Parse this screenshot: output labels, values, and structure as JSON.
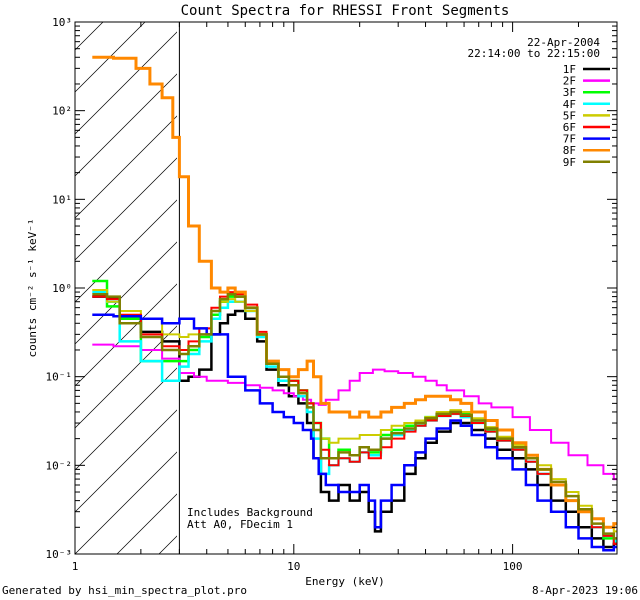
{
  "chart_data": {
    "type": "line",
    "title": "Count Spectra for RHESSI Front Segments",
    "xlabel": "Energy (keV)",
    "ylabel": "counts cm⁻² s⁻¹ keV⁻¹",
    "xscale": "log",
    "yscale": "log",
    "xlim": [
      1,
      300
    ],
    "ylim": [
      0.001,
      1000
    ],
    "x_ticks": [
      {
        "value": 1,
        "label": "1"
      },
      {
        "value": 10,
        "label": "10"
      },
      {
        "value": 100,
        "label": "100"
      }
    ],
    "y_ticks": [
      {
        "value": 0.001,
        "label": "10⁻³"
      },
      {
        "value": 0.01,
        "label": "10⁻²"
      },
      {
        "value": 0.1,
        "label": "10⁻¹"
      },
      {
        "value": 1,
        "label": "10⁰"
      },
      {
        "value": 10,
        "label": "10¹"
      },
      {
        "value": 100,
        "label": "10²"
      },
      {
        "value": 1000,
        "label": "10³"
      }
    ],
    "date": "22-Apr-2004",
    "time_range": "22:14:00 to 22:15:00",
    "hatched_region_max_keV": 3,
    "annotations": [
      "Includes Background",
      "Att A0, FDecim 1"
    ],
    "footer_left": "Generated by hsi_min_spectra_plot.pro",
    "footer_right": "8-Apr-2023 19:06",
    "series": [
      {
        "name": "1F",
        "color": "#000000",
        "width": 2.5,
        "x": [
          1.2,
          1.4,
          1.6,
          2.0,
          2.5,
          3.0,
          3.3,
          3.7,
          4.2,
          4.6,
          5.0,
          5.4,
          6.0,
          6.8,
          7.5,
          8.5,
          9.5,
          10.5,
          11.5,
          12.3,
          13.3,
          14.5,
          16,
          18,
          20,
          22,
          23.5,
          25,
          28,
          32,
          36,
          40,
          45,
          52,
          58,
          65,
          75,
          85,
          100,
          115,
          130,
          150,
          175,
          200,
          230,
          260,
          290
        ],
        "y": [
          0.8,
          0.78,
          0.45,
          0.32,
          0.25,
          0.09,
          0.1,
          0.12,
          0.3,
          0.4,
          0.5,
          0.55,
          0.45,
          0.25,
          0.12,
          0.08,
          0.06,
          0.05,
          0.03,
          0.012,
          0.005,
          0.004,
          0.006,
          0.004,
          0.005,
          0.003,
          0.0018,
          0.003,
          0.004,
          0.008,
          0.012,
          0.018,
          0.024,
          0.03,
          0.03,
          0.025,
          0.02,
          0.015,
          0.012,
          0.009,
          0.006,
          0.004,
          0.003,
          0.002,
          0.0015,
          0.0012,
          0.0013
        ]
      },
      {
        "name": "2F",
        "color": "#ff00ff",
        "width": 2,
        "x": [
          1.2,
          1.5,
          2.0,
          2.5,
          3.0,
          3.5,
          4.0,
          5.0,
          6.0,
          7.0,
          8.0,
          9.0,
          10,
          11,
          12,
          13,
          14,
          16,
          18,
          20,
          23,
          26,
          30,
          35,
          40,
          45,
          50,
          60,
          70,
          80,
          100,
          120,
          150,
          180,
          220,
          260,
          290
        ],
        "y": [
          0.23,
          0.22,
          0.2,
          0.16,
          0.11,
          0.1,
          0.09,
          0.085,
          0.08,
          0.075,
          0.07,
          0.065,
          0.06,
          0.055,
          0.05,
          0.048,
          0.055,
          0.07,
          0.09,
          0.11,
          0.12,
          0.115,
          0.11,
          0.1,
          0.09,
          0.08,
          0.07,
          0.06,
          0.05,
          0.045,
          0.035,
          0.025,
          0.018,
          0.013,
          0.01,
          0.008,
          0.007
        ]
      },
      {
        "name": "3F",
        "color": "#00ff00",
        "width": 2.5,
        "x": [
          1.2,
          1.4,
          1.6,
          2.0,
          2.5,
          3.0,
          3.3,
          3.7,
          4.2,
          4.6,
          5.0,
          5.4,
          6.0,
          6.8,
          7.5,
          8.5,
          9.5,
          10.5,
          11.5,
          12.3,
          13.3,
          14.5,
          16,
          18,
          20,
          22,
          25,
          28,
          32,
          36,
          40,
          45,
          52,
          58,
          65,
          75,
          85,
          100,
          115,
          130,
          150,
          175,
          200,
          230,
          260,
          290
        ],
        "y": [
          1.2,
          0.62,
          0.45,
          0.15,
          0.15,
          0.15,
          0.2,
          0.28,
          0.5,
          0.7,
          0.8,
          0.8,
          0.6,
          0.3,
          0.14,
          0.1,
          0.09,
          0.07,
          0.05,
          0.03,
          0.02,
          0.012,
          0.015,
          0.013,
          0.016,
          0.014,
          0.022,
          0.025,
          0.028,
          0.03,
          0.035,
          0.038,
          0.04,
          0.038,
          0.032,
          0.025,
          0.02,
          0.016,
          0.012,
          0.009,
          0.006,
          0.004,
          0.003,
          0.002,
          0.0015,
          0.0014
        ]
      },
      {
        "name": "4F",
        "color": "#00ffff",
        "width": 2.5,
        "x": [
          1.2,
          1.4,
          1.6,
          2.0,
          2.5,
          3.0,
          3.3,
          3.7,
          4.2,
          4.6,
          5.0,
          5.4,
          6.0,
          6.8,
          7.5,
          8.5,
          9.5,
          10.5,
          11.5,
          12.3,
          13.3,
          14.5,
          16,
          18,
          20,
          22,
          25,
          28,
          32,
          36,
          40,
          45,
          52,
          58,
          65,
          75,
          85,
          100,
          115,
          130,
          150,
          175,
          200,
          230,
          260,
          290
        ],
        "y": [
          0.9,
          0.7,
          0.25,
          0.15,
          0.09,
          0.13,
          0.18,
          0.25,
          0.45,
          0.6,
          0.7,
          0.7,
          0.55,
          0.28,
          0.13,
          0.09,
          0.08,
          0.06,
          0.04,
          0.02,
          0.008,
          0.01,
          0.012,
          0.011,
          0.014,
          0.013,
          0.02,
          0.022,
          0.025,
          0.028,
          0.032,
          0.036,
          0.038,
          0.035,
          0.03,
          0.024,
          0.019,
          0.015,
          0.011,
          0.008,
          0.006,
          0.004,
          0.003,
          0.002,
          0.0016,
          0.0014
        ]
      },
      {
        "name": "5F",
        "color": "#cccc00",
        "width": 2,
        "x": [
          1.2,
          1.4,
          1.6,
          2.0,
          2.5,
          3.0,
          3.3,
          3.7,
          4.2,
          4.6,
          5.0,
          5.4,
          6.0,
          6.8,
          7.5,
          8.5,
          9.5,
          10.5,
          11.5,
          12.3,
          13.3,
          14.5,
          16,
          18,
          20,
          22,
          25,
          28,
          32,
          36,
          40,
          45,
          52,
          58,
          65,
          75,
          85,
          100,
          115,
          130,
          150,
          175,
          200,
          230,
          260,
          290
        ],
        "y": [
          0.95,
          0.7,
          0.55,
          0.45,
          0.3,
          0.28,
          0.3,
          0.35,
          0.55,
          0.7,
          0.75,
          0.7,
          0.55,
          0.3,
          0.15,
          0.1,
          0.08,
          0.07,
          0.05,
          0.03,
          0.02,
          0.018,
          0.02,
          0.02,
          0.022,
          0.022,
          0.025,
          0.028,
          0.03,
          0.032,
          0.035,
          0.04,
          0.042,
          0.04,
          0.034,
          0.027,
          0.021,
          0.017,
          0.013,
          0.01,
          0.007,
          0.005,
          0.0035,
          0.0025,
          0.002,
          0.0018
        ]
      },
      {
        "name": "6F",
        "color": "#ff0000",
        "width": 2,
        "x": [
          1.2,
          1.4,
          1.6,
          2.0,
          2.5,
          3.0,
          3.3,
          3.7,
          4.2,
          4.6,
          5.0,
          5.4,
          6.0,
          6.8,
          7.5,
          8.5,
          9.5,
          10.5,
          11.5,
          12.3,
          13.3,
          14.5,
          16,
          18,
          20,
          22,
          25,
          28,
          32,
          36,
          40,
          45,
          52,
          58,
          65,
          75,
          85,
          100,
          115,
          130,
          150,
          175,
          200,
          230,
          260,
          290
        ],
        "y": [
          0.8,
          0.75,
          0.5,
          0.3,
          0.22,
          0.2,
          0.25,
          0.35,
          0.6,
          0.8,
          0.9,
          0.85,
          0.65,
          0.32,
          0.15,
          0.1,
          0.09,
          0.07,
          0.05,
          0.03,
          0.015,
          0.01,
          0.012,
          0.011,
          0.014,
          0.012,
          0.016,
          0.02,
          0.024,
          0.028,
          0.032,
          0.036,
          0.038,
          0.036,
          0.03,
          0.024,
          0.019,
          0.015,
          0.011,
          0.008,
          0.006,
          0.004,
          0.003,
          0.002,
          0.0016,
          0.0013
        ]
      },
      {
        "name": "7F",
        "color": "#0000ff",
        "width": 2.5,
        "x": [
          1.2,
          1.5,
          2.0,
          2.5,
          3.0,
          3.5,
          4.0,
          5.0,
          6.0,
          7.0,
          8.0,
          9.0,
          10,
          11,
          12,
          12.3,
          13,
          14,
          16,
          18,
          20,
          22,
          23.5,
          25,
          28,
          32,
          36,
          40,
          45,
          52,
          58,
          65,
          75,
          85,
          100,
          115,
          130,
          150,
          175,
          200,
          230,
          260,
          290
        ],
        "y": [
          0.5,
          0.48,
          0.45,
          0.4,
          0.45,
          0.35,
          0.3,
          0.1,
          0.07,
          0.05,
          0.04,
          0.035,
          0.03,
          0.025,
          0.02,
          0.012,
          0.008,
          0.006,
          0.005,
          0.005,
          0.006,
          0.004,
          0.002,
          0.004,
          0.006,
          0.01,
          0.014,
          0.02,
          0.026,
          0.032,
          0.028,
          0.022,
          0.016,
          0.012,
          0.009,
          0.006,
          0.004,
          0.003,
          0.002,
          0.0015,
          0.0012,
          0.0011,
          0.0012
        ]
      },
      {
        "name": "8F",
        "color": "#ff8800",
        "width": 3,
        "x": [
          1.2,
          1.5,
          1.9,
          2.2,
          2.5,
          2.8,
          3.0,
          3.3,
          3.7,
          4.2,
          4.6,
          5.0,
          5.4,
          6.0,
          6.8,
          7.5,
          8.5,
          9.5,
          10.5,
          11.5,
          12.3,
          13.3,
          14.5,
          16,
          18,
          20,
          22,
          25,
          28,
          32,
          36,
          40,
          45,
          52,
          58,
          65,
          75,
          85,
          100,
          115,
          130,
          150,
          175,
          200,
          230,
          260,
          290
        ],
        "y": [
          400,
          390,
          300,
          200,
          140,
          50,
          18,
          5,
          2,
          1,
          0.9,
          1.0,
          0.9,
          0.6,
          0.3,
          0.15,
          0.12,
          0.1,
          0.12,
          0.15,
          0.1,
          0.05,
          0.04,
          0.04,
          0.035,
          0.04,
          0.035,
          0.04,
          0.045,
          0.05,
          0.055,
          0.06,
          0.06,
          0.055,
          0.05,
          0.04,
          0.032,
          0.025,
          0.018,
          0.013,
          0.009,
          0.006,
          0.004,
          0.003,
          0.0025,
          0.002,
          0.0022
        ]
      },
      {
        "name": "9F",
        "color": "#808000",
        "width": 2.5,
        "x": [
          1.2,
          1.4,
          1.6,
          2.0,
          2.5,
          3.0,
          3.3,
          3.7,
          4.2,
          4.6,
          5.0,
          5.4,
          6.0,
          6.8,
          7.5,
          8.5,
          9.5,
          10.5,
          11.5,
          12.3,
          13.3,
          14.5,
          16,
          18,
          20,
          22,
          25,
          28,
          32,
          36,
          40,
          45,
          52,
          58,
          65,
          75,
          85,
          100,
          115,
          130,
          150,
          175,
          200,
          230,
          260,
          290
        ],
        "y": [
          0.85,
          0.8,
          0.4,
          0.28,
          0.2,
          0.18,
          0.22,
          0.3,
          0.55,
          0.75,
          0.85,
          0.8,
          0.6,
          0.3,
          0.14,
          0.1,
          0.08,
          0.065,
          0.045,
          0.025,
          0.012,
          0.012,
          0.014,
          0.013,
          0.016,
          0.015,
          0.02,
          0.023,
          0.026,
          0.03,
          0.034,
          0.038,
          0.04,
          0.037,
          0.032,
          0.026,
          0.02,
          0.016,
          0.012,
          0.009,
          0.0065,
          0.0045,
          0.0032,
          0.0022,
          0.0017,
          0.0015
        ]
      }
    ]
  }
}
